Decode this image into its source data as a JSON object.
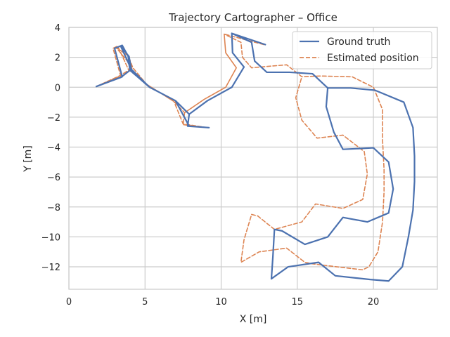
{
  "chart_data": {
    "type": "line",
    "title": "Trajectory Cartographer – Office",
    "xlabel": "X [m]",
    "ylabel": "Y [m]",
    "xlim": [
      0,
      24.2
    ],
    "ylim": [
      -13.5,
      4
    ],
    "xticks": [
      0,
      5,
      10,
      15,
      20
    ],
    "yticks": [
      4,
      2,
      0,
      -2,
      -4,
      -6,
      -8,
      -10,
      -12
    ],
    "xtick_labels": [
      "0",
      "5",
      "10",
      "15",
      "20"
    ],
    "ytick_labels": [
      "4",
      "2",
      "0",
      "−2",
      "−4",
      "−6",
      "−8",
      "−10",
      "−12"
    ],
    "grid": true,
    "legend_position": "upper right",
    "series": [
      {
        "name": "Ground truth",
        "color": "#4c72b0",
        "style": "solid",
        "points": [
          [
            12.9,
            2.85
          ],
          [
            10.7,
            3.6
          ],
          [
            10.75,
            2.3
          ],
          [
            11.5,
            1.35
          ],
          [
            10.7,
            0.0
          ],
          [
            9.1,
            -0.9
          ],
          [
            7.9,
            -1.8
          ],
          [
            7.8,
            -2.6
          ],
          [
            9.2,
            -2.7
          ],
          [
            7.9,
            -2.6
          ],
          [
            7.0,
            -0.9
          ],
          [
            5.3,
            0.0
          ],
          [
            4.0,
            1.15
          ],
          [
            3.9,
            2.05
          ],
          [
            3.5,
            2.8
          ],
          [
            3.0,
            2.6
          ],
          [
            3.5,
            0.7
          ],
          [
            1.8,
            0.05
          ],
          [
            3.4,
            0.65
          ],
          [
            4.1,
            1.2
          ],
          [
            3.4,
            2.75
          ],
          [
            3.95,
            2.05
          ],
          [
            4.1,
            1.2
          ],
          [
            5.3,
            0.0
          ],
          [
            7.0,
            -0.9
          ],
          [
            7.9,
            -1.8
          ],
          [
            9.1,
            -0.9
          ],
          [
            10.7,
            0.0
          ],
          [
            11.5,
            1.35
          ],
          [
            10.75,
            2.3
          ],
          [
            10.7,
            3.6
          ],
          [
            12.0,
            3.0
          ],
          [
            12.2,
            1.75
          ],
          [
            13.0,
            1.0
          ],
          [
            14.5,
            1.0
          ],
          [
            16.0,
            0.9
          ],
          [
            17.0,
            -0.05
          ],
          [
            18.5,
            -0.05
          ],
          [
            20.1,
            -0.2
          ],
          [
            22.0,
            -1.0
          ],
          [
            22.6,
            -2.7
          ],
          [
            22.7,
            -4.6
          ],
          [
            22.7,
            -6.3
          ],
          [
            22.6,
            -8.2
          ],
          [
            22.3,
            -10.0
          ],
          [
            21.9,
            -12.0
          ],
          [
            21.0,
            -12.95
          ],
          [
            19.8,
            -12.85
          ],
          [
            17.5,
            -12.6
          ],
          [
            16.4,
            -11.7
          ],
          [
            14.4,
            -12.0
          ],
          [
            13.3,
            -12.8
          ],
          [
            13.4,
            -11.3
          ],
          [
            13.5,
            -9.5
          ],
          [
            14.0,
            -9.6
          ],
          [
            15.5,
            -10.5
          ],
          [
            17.0,
            -10.0
          ],
          [
            18.0,
            -8.7
          ],
          [
            19.6,
            -9.0
          ],
          [
            21.0,
            -8.4
          ],
          [
            21.3,
            -6.8
          ],
          [
            21.0,
            -5.0
          ],
          [
            20.0,
            -4.05
          ],
          [
            18.0,
            -4.15
          ],
          [
            17.4,
            -3.0
          ],
          [
            16.9,
            -1.3
          ],
          [
            17.0,
            -0.05
          ]
        ]
      },
      {
        "name": "Estimated position",
        "color": "#dd8452",
        "style": "dashed",
        "points": [
          [
            12.8,
            2.85
          ],
          [
            10.2,
            3.55
          ],
          [
            10.3,
            2.3
          ],
          [
            11.0,
            1.3
          ],
          [
            10.3,
            0.0
          ],
          [
            8.9,
            -0.8
          ],
          [
            7.6,
            -1.7
          ],
          [
            7.5,
            -2.5
          ],
          [
            9.1,
            -2.7
          ],
          [
            7.5,
            -2.45
          ],
          [
            6.9,
            -0.95
          ],
          [
            5.1,
            0.2
          ],
          [
            3.9,
            1.2
          ],
          [
            3.5,
            2.1
          ],
          [
            3.2,
            2.75
          ],
          [
            2.9,
            2.6
          ],
          [
            3.4,
            0.75
          ],
          [
            1.8,
            0.05
          ],
          [
            3.3,
            0.75
          ],
          [
            4.2,
            1.3
          ],
          [
            3.1,
            2.65
          ],
          [
            3.9,
            2.1
          ],
          [
            4.2,
            1.3
          ],
          [
            5.1,
            0.2
          ],
          [
            6.9,
            -0.95
          ],
          [
            7.6,
            -1.7
          ],
          [
            8.9,
            -0.8
          ],
          [
            10.3,
            0.0
          ],
          [
            11.0,
            1.3
          ],
          [
            10.3,
            2.3
          ],
          [
            10.2,
            3.55
          ],
          [
            11.3,
            3.0
          ],
          [
            11.4,
            2.0
          ],
          [
            12.0,
            1.3
          ],
          [
            14.3,
            1.5
          ],
          [
            15.3,
            0.7
          ],
          [
            16.5,
            0.75
          ],
          [
            18.6,
            0.7
          ],
          [
            20.0,
            0.0
          ],
          [
            20.6,
            -1.5
          ],
          [
            20.6,
            -3.5
          ],
          [
            20.7,
            -5.5
          ],
          [
            20.7,
            -7.0
          ],
          [
            20.6,
            -9.0
          ],
          [
            20.3,
            -11.0
          ],
          [
            19.7,
            -12.0
          ],
          [
            19.3,
            -12.2
          ],
          [
            17.6,
            -12.0
          ],
          [
            16.0,
            -11.8
          ],
          [
            15.5,
            -11.7
          ],
          [
            14.3,
            -10.75
          ],
          [
            12.5,
            -11.0
          ],
          [
            11.3,
            -11.7
          ],
          [
            11.5,
            -10.2
          ],
          [
            12.0,
            -8.5
          ],
          [
            12.4,
            -8.6
          ],
          [
            13.5,
            -9.5
          ],
          [
            15.3,
            -9.0
          ],
          [
            16.2,
            -7.8
          ],
          [
            18.0,
            -8.1
          ],
          [
            19.3,
            -7.5
          ],
          [
            19.6,
            -5.8
          ],
          [
            19.4,
            -4.3
          ],
          [
            18.0,
            -3.2
          ],
          [
            16.3,
            -3.4
          ],
          [
            15.3,
            -2.2
          ],
          [
            14.9,
            -0.7
          ],
          [
            15.3,
            0.7
          ]
        ]
      }
    ]
  }
}
